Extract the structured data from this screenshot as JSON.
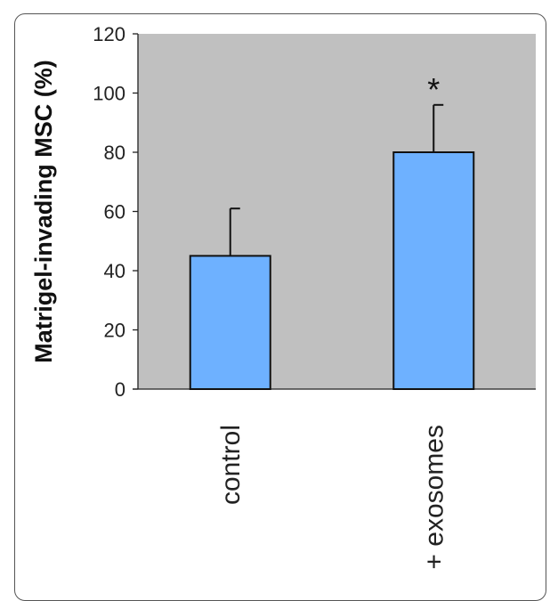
{
  "chart_data": {
    "type": "bar",
    "categories": [
      "control",
      "+ exosomes"
    ],
    "values": [
      45,
      80
    ],
    "error_bars_upper": [
      61,
      96
    ],
    "ylabel": "Matrigel-invading MSC (%)",
    "xlabel": "",
    "title": "",
    "ylim": [
      0,
      120
    ],
    "yticks": [
      0,
      20,
      40,
      60,
      80,
      100,
      120
    ],
    "annotations": [
      {
        "category": "+ exosomes",
        "text": "*"
      }
    ],
    "grid": false,
    "legend": "none",
    "colors": {
      "bar": "#6eb1ff",
      "bar_stroke": "#111111",
      "plot_background": "#c0c0c0"
    }
  }
}
